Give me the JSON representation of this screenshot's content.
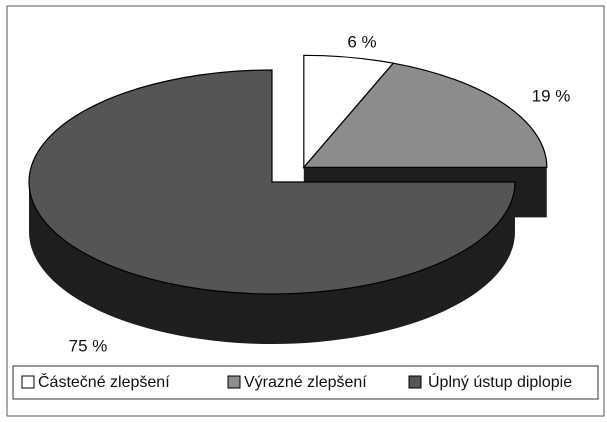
{
  "chart_data": {
    "type": "pie",
    "categories": [
      "Částečné zlepšení",
      "Výrazné zlepšení",
      "Úplný ústup diplopie"
    ],
    "values": [
      6,
      19,
      75
    ],
    "value_labels": [
      "6 %",
      "19 %",
      "75 %"
    ],
    "colors": [
      "#ffffff",
      "#8c8c8c",
      "#555555"
    ],
    "legend": "bottom"
  }
}
